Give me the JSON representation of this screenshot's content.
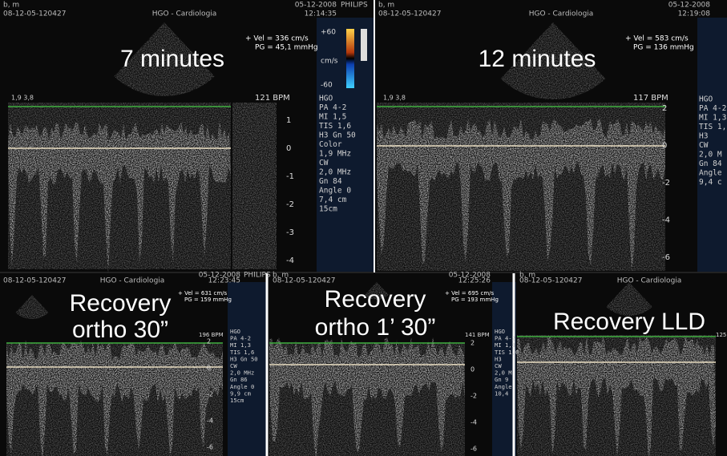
{
  "panels": [
    {
      "header": {
        "patient": "b, m",
        "id": "08-12-05-120427",
        "site": "HGO - Cardiologia",
        "date": "05-12-2008",
        "time": "12:14:35",
        "brand": "PHILIPS"
      },
      "title": [
        "7 minutes"
      ],
      "vel": "+ Vel = 336 cm/s",
      "pg": "PG = 45,1 mmHg",
      "bpm": "121 BPM",
      "probe": "1,9 3,8",
      "scale": [
        "1",
        "0",
        "-1",
        "-2",
        "-3",
        "-4"
      ],
      "color_scale": [
        "+60",
        "cm/s",
        "-60"
      ],
      "info": [
        "HGO",
        "PA 4-2",
        "MI 1,5",
        "TIS 1,6",
        "H3    Gn 50",
        "Color",
        "1,9 MHz",
        "CW",
        "2,0 MHz",
        "Gn 84",
        "Angle 0",
        "7,4 cm",
        "15cm"
      ]
    },
    {
      "header": {
        "patient": "b, m",
        "id": "08-12-05-120427",
        "site": "HGO - Cardiologia",
        "date": "05-12-2008",
        "time": "12:19:08"
      },
      "title": [
        "12 minutes"
      ],
      "vel": "+ Vel = 583 cm/s",
      "pg": "PG = 136 mmHg",
      "bpm": "117 BPM",
      "probe": "1,9 3,8",
      "scale": [
        "2",
        "0",
        "-2",
        "-4",
        "-6"
      ],
      "info": [
        "HGO",
        "PA 4-2",
        "MI 1,3",
        "TIS 1,",
        "H3",
        "CW",
        "2,0 M",
        "Gn 84",
        "Angle",
        "9,4 c"
      ]
    },
    {
      "header": {
        "id": "08-12-05-120427",
        "site": "HGO - Cardiologia",
        "date": "05-12-2008",
        "time": "12:23:45",
        "brand": "PHILIPS"
      },
      "title": [
        "Recovery",
        "ortho 30”"
      ],
      "vel": "+ Vel = 631 cm/s",
      "pg": "PG = 159 mmHg",
      "bpm": "196 BPM",
      "scale": [
        "2",
        "0",
        "-2",
        "-4",
        "-6"
      ],
      "info": [
        "HGO",
        "PA 4-2",
        "MI 1,3",
        "TIS 1,6",
        "H3    Gn 50",
        "CW",
        "2,0 MHz",
        "Gn 86",
        "Angle 0",
        "9,9 cm",
        "15cm"
      ]
    },
    {
      "header": {
        "patient": "b, m",
        "id": "08-12-05-120427",
        "date": "05-12-2008",
        "time": "12:25:26"
      },
      "title": [
        "Recovery",
        "ortho 1’ 30”"
      ],
      "vel": "+ Vel = 695 cm/s",
      "pg": "PG = 193 mmHg",
      "bpm": "141 BPM",
      "scale": [
        "2",
        "0",
        "-2",
        "-4",
        "-6"
      ],
      "info": [
        "HGO",
        "PA 4-2",
        "MI 1,3",
        "TIS 1,6",
        "H3",
        "CW",
        "2,0 M",
        "Gn 9",
        "Angle",
        "10,4"
      ]
    },
    {
      "header": {
        "patient": "b, m",
        "id": "08-12-05-120427",
        "site": "HGO - Cardiologia"
      },
      "title": [
        "Recovery LLD"
      ],
      "bpm": "125"
    }
  ]
}
